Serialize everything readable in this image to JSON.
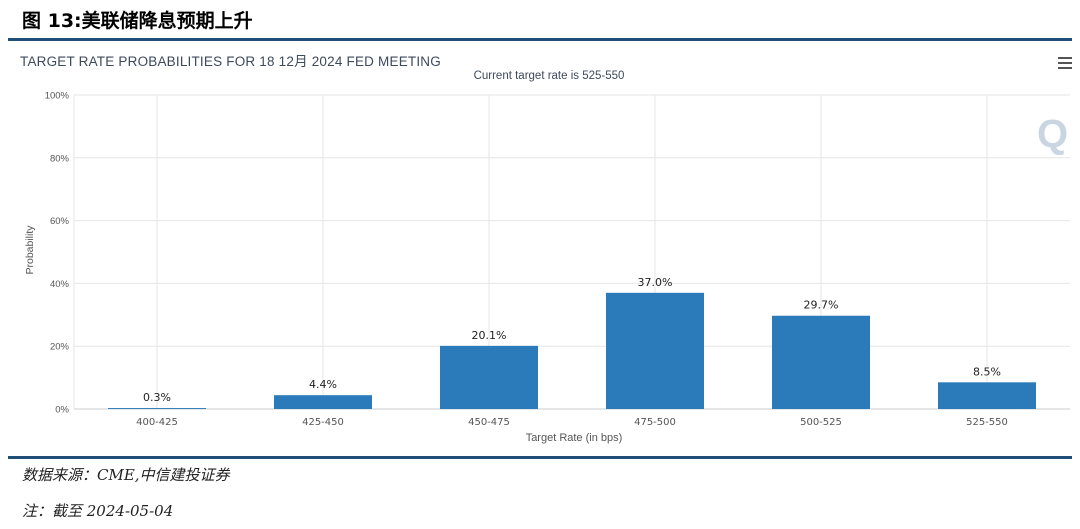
{
  "figure_title": "图 13:美联储降息预期上升",
  "source": "数据来源：CME,中信建投证券",
  "note": "注：截至 2024-05-04",
  "menu_icon": "hamburger-menu-icon",
  "watermark": "Q",
  "chart_data": {
    "type": "bar",
    "title": "TARGET RATE PROBABILITIES FOR 18 12月 2024 FED MEETING",
    "subtitle": "Current target rate is 525-550",
    "xlabel": "Target Rate (in bps)",
    "ylabel": "Probability",
    "categories": [
      "400-425",
      "425-450",
      "450-475",
      "475-500",
      "500-525",
      "525-550"
    ],
    "values": [
      0.3,
      4.4,
      20.1,
      37.0,
      29.7,
      8.5
    ],
    "data_labels": [
      "0.3%",
      "4.4%",
      "20.1%",
      "37.0%",
      "29.7%",
      "8.5%"
    ],
    "yticks": [
      "0%",
      "20%",
      "40%",
      "60%",
      "80%",
      "100%"
    ],
    "ylim": [
      0,
      100
    ],
    "bar_color": "#2b7bba",
    "grid": true
  }
}
